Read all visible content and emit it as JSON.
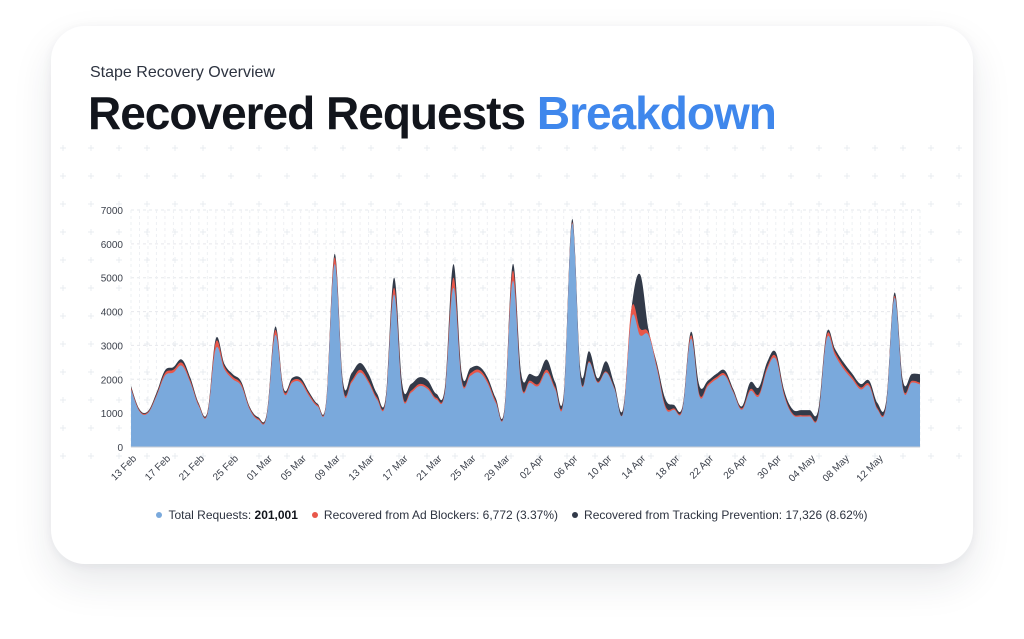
{
  "header": {
    "subtitle": "Stape Recovery Overview",
    "title_main": "Recovered Requests",
    "title_accent": "Breakdown"
  },
  "colors": {
    "total": "#7aa9dc",
    "ad_blockers": "#e8574a",
    "tracking_prevention": "#323a49",
    "accent": "#3f87ec"
  },
  "legend": [
    {
      "label": "Total Requests:",
      "value": "201,001",
      "bold": true,
      "color": "#7aa9dc"
    },
    {
      "label": "Recovered from Ad Blockers:",
      "value": "6,772 (3.37%)",
      "bold": false,
      "color": "#e8574a"
    },
    {
      "label": "Recovered from Tracking Prevention:",
      "value": "17,326 (8.62%)",
      "bold": false,
      "color": "#323a49"
    }
  ],
  "chart_data": {
    "type": "area",
    "stacked": true,
    "ylim": [
      0,
      7000
    ],
    "yticks": [
      "0",
      "1000",
      "2000",
      "3000",
      "4000",
      "5000",
      "6000",
      "7000"
    ],
    "xtick_labels": [
      "13 Feb",
      "17 Feb",
      "21 Feb",
      "25 Feb",
      "01 Mar",
      "05 Mar",
      "09 Mar",
      "13 Mar",
      "17 Mar",
      "21 Mar",
      "25 Mar",
      "29 Mar",
      "02 Apr",
      "06 Apr",
      "10 Apr",
      "14 Apr",
      "18 Apr",
      "22 Apr",
      "26 Apr",
      "30 Apr",
      "04 May",
      "08 May",
      "12 May"
    ],
    "x_start": "13 Feb",
    "grid": true,
    "series": [
      {
        "name": "Total Requests",
        "values": [
          1700,
          1050,
          1000,
          1500,
          2100,
          2200,
          2400,
          1900,
          1200,
          950,
          2900,
          2300,
          2000,
          1800,
          1100,
          800,
          900,
          3300,
          1600,
          1900,
          1900,
          1500,
          1200,
          1250,
          5400,
          1700,
          1900,
          2200,
          1900,
          1400,
          1300,
          4500,
          1500,
          1600,
          1800,
          1700,
          1400,
          1600,
          4700,
          1900,
          2100,
          2200,
          1900,
          1300,
          1000,
          4900,
          1800,
          1900,
          1800,
          2200,
          1700,
          1400,
          6600,
          2000,
          2500,
          1900,
          2200,
          1700,
          1000,
          3800,
          3300,
          3300,
          2300,
          1150,
          1100,
          1100,
          3200,
          1500,
          1800,
          2000,
          2100,
          1600,
          1100,
          1650,
          1500,
          2300,
          2600,
          1500,
          950,
          900,
          900,
          900,
          3200,
          2700,
          2300,
          2000,
          1700,
          1800,
          1100,
          1200,
          4400,
          1700,
          1900,
          1850
        ]
      },
      {
        "name": "Recovered from Ad Blockers",
        "values": [
          50,
          30,
          30,
          40,
          80,
          80,
          90,
          60,
          40,
          40,
          200,
          80,
          70,
          60,
          40,
          40,
          40,
          150,
          60,
          60,
          60,
          60,
          40,
          40,
          200,
          60,
          60,
          80,
          60,
          60,
          50,
          200,
          60,
          60,
          60,
          60,
          50,
          60,
          300,
          60,
          80,
          80,
          70,
          60,
          40,
          300,
          60,
          60,
          60,
          80,
          60,
          50,
          30,
          30,
          30,
          30,
          30,
          30,
          30,
          300,
          200,
          80,
          80,
          60,
          40,
          40,
          100,
          60,
          60,
          60,
          60,
          40,
          40,
          60,
          60,
          70,
          80,
          60,
          40,
          40,
          40,
          40,
          100,
          90,
          80,
          70,
          60,
          60,
          40,
          40,
          60,
          50,
          50,
          50
        ]
      },
      {
        "name": "Recovered from Tracking Prevention",
        "values": [
          50,
          30,
          30,
          60,
          80,
          80,
          90,
          80,
          40,
          40,
          100,
          80,
          80,
          70,
          40,
          40,
          40,
          100,
          60,
          80,
          80,
          60,
          40,
          40,
          100,
          150,
          220,
          200,
          200,
          120,
          80,
          300,
          250,
          200,
          200,
          200,
          120,
          100,
          400,
          200,
          150,
          100,
          100,
          80,
          60,
          200,
          300,
          200,
          250,
          300,
          150,
          100,
          100,
          200,
          300,
          100,
          300,
          100,
          100,
          0,
          1600,
          100,
          80,
          200,
          100,
          60,
          100,
          250,
          100,
          100,
          100,
          60,
          60,
          200,
          200,
          150,
          120,
          100,
          120,
          150,
          150,
          150,
          80,
          100,
          120,
          100,
          100,
          100,
          150,
          100,
          100,
          200,
          200,
          250
        ]
      }
    ]
  }
}
